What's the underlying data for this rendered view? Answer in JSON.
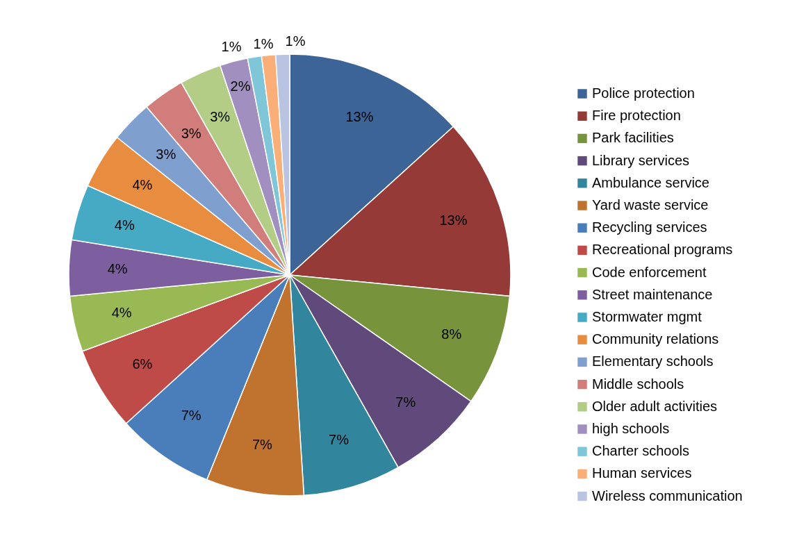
{
  "chart_data": {
    "type": "pie",
    "categories": [
      "Police protection",
      "Fire protection",
      "Park facilities",
      "Library services",
      "Ambulance service",
      "Yard waste service",
      "Recycling services",
      "Recreational programs",
      "Code enforcement",
      "Street maintenance",
      "Stormwater mgmt",
      "Community relations",
      "Elementary schools",
      "Middle schools",
      "Older adult activities",
      "high schools",
      "Charter schools",
      "Human services",
      "Wireless communication"
    ],
    "values": [
      13,
      13,
      8,
      7,
      7,
      7,
      7,
      6,
      4,
      4,
      4,
      4,
      3,
      3,
      3,
      2,
      1,
      1,
      1
    ],
    "value_labels": [
      "13%",
      "13%",
      "8%",
      "7%",
      "7%",
      "7%",
      "7%",
      "6%",
      "4%",
      "4%",
      "4%",
      "4%",
      "3%",
      "3%",
      "3%",
      "2%",
      "1%",
      "1%",
      "1%"
    ],
    "colors": [
      "#3d6496",
      "#953a37",
      "#77933c",
      "#604a7b",
      "#31859c",
      "#c0722f",
      "#4a7ebb",
      "#be4b48",
      "#98b954",
      "#7d5fa0",
      "#46aac5",
      "#e88c40",
      "#7f9fcf",
      "#d07d7b",
      "#b3cd87",
      "#a08fbf",
      "#7fc6d8",
      "#fbaf78",
      "#b9c4e2"
    ],
    "legend": "right"
  }
}
